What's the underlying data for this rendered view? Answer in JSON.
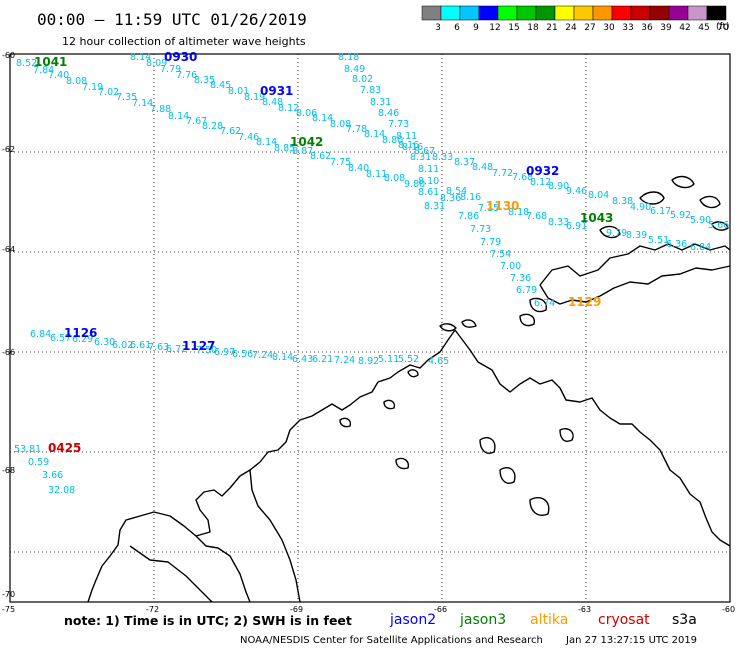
{
  "title": "00:00 – 11:59 UTC 01/26/2019",
  "subtitle": "12 hour collection of altimeter wave heights",
  "legend": {
    "unit": "(ft)",
    "labels": [
      "3",
      "6",
      "9",
      "12",
      "15",
      "18",
      "21",
      "24",
      "27",
      "30",
      "33",
      "36",
      "39",
      "42",
      "45",
      "70"
    ],
    "colors": [
      "#808080",
      "#00ffff",
      "#00c8ff",
      "#0000ff",
      "#00ff00",
      "#00c800",
      "#009600",
      "#ffff00",
      "#ffc800",
      "#ff9600",
      "#ff0000",
      "#c80000",
      "#960000",
      "#960096",
      "#c896c8",
      "#000000"
    ]
  },
  "axes": {
    "lat_labels": [
      "-60",
      "-62",
      "-64",
      "-66",
      "-68",
      "-70"
    ],
    "lon_labels": [
      "-75",
      "-72",
      "-69",
      "-66",
      "-63",
      "-60"
    ]
  },
  "colors": {
    "jason2": "#0000ff",
    "jason3": "#008000",
    "altika": "#ff9900",
    "cryosat": "#cc0000",
    "s3a": "#000000",
    "obs_default": "#00bfe8",
    "coast": "#000000",
    "grid": "#000000"
  },
  "pass_times": [
    {
      "text": "1041",
      "sat": "jason3"
    },
    {
      "text": "0930",
      "sat": "jason2"
    },
    {
      "text": "0931",
      "sat": "jason2"
    },
    {
      "text": "1042",
      "sat": "jason3"
    },
    {
      "text": "0932",
      "sat": "jason2"
    },
    {
      "text": "1043",
      "sat": "jason3"
    },
    {
      "text": "1126",
      "sat": "jason2"
    },
    {
      "text": "1127",
      "sat": "jason2"
    },
    {
      "text": "0425",
      "sat": "cryosat"
    },
    {
      "text": "1130",
      "sat": "altika"
    },
    {
      "text": "1129",
      "sat": "altika"
    }
  ],
  "observations": [
    {
      "v": "8.52"
    },
    {
      "v": "7.84"
    },
    {
      "v": "7.40"
    },
    {
      "v": "8.08"
    },
    {
      "v": "7.19"
    },
    {
      "v": "7.02"
    },
    {
      "v": "7.35"
    },
    {
      "v": "7.14"
    },
    {
      "v": "7.88"
    },
    {
      "v": "8.14"
    },
    {
      "v": "7.67"
    },
    {
      "v": "8.28"
    },
    {
      "v": "7.62"
    },
    {
      "v": "7.46"
    },
    {
      "v": "8.14"
    },
    {
      "v": "8.85"
    },
    {
      "v": "8.87"
    },
    {
      "v": "8.62"
    },
    {
      "v": "7.75"
    },
    {
      "v": "8.40"
    },
    {
      "v": "8.11"
    },
    {
      "v": "8.08"
    },
    {
      "v": "8.14"
    },
    {
      "v": "8.09"
    },
    {
      "v": "7.79"
    },
    {
      "v": "7.76"
    },
    {
      "v": "8.35"
    },
    {
      "v": "8.45"
    },
    {
      "v": "8.01"
    },
    {
      "v": "8.19"
    },
    {
      "v": "8.48"
    },
    {
      "v": "8.12"
    },
    {
      "v": "8.06"
    },
    {
      "v": "8.14"
    },
    {
      "v": "8.08"
    },
    {
      "v": "7.78"
    },
    {
      "v": "8.14"
    },
    {
      "v": "8.80"
    },
    {
      "v": "8.16"
    },
    {
      "v": "8.67"
    },
    {
      "v": "8.33"
    },
    {
      "v": "8.37"
    },
    {
      "v": "8.48"
    },
    {
      "v": "7.72"
    },
    {
      "v": "7.68"
    },
    {
      "v": "8.12"
    },
    {
      "v": "8.90"
    },
    {
      "v": "8.18"
    },
    {
      "v": "8.49"
    },
    {
      "v": "8.02"
    },
    {
      "v": "7.83"
    },
    {
      "v": "8.31"
    },
    {
      "v": "8.46"
    },
    {
      "v": "7.73"
    },
    {
      "v": "8.11"
    },
    {
      "v": "8.16"
    },
    {
      "v": "8.31"
    },
    {
      "v": "8.11"
    },
    {
      "v": "8.10"
    },
    {
      "v": "9.80"
    },
    {
      "v": "8.61"
    },
    {
      "v": "8.36"
    },
    {
      "v": "8.31"
    },
    {
      "v": "7.86"
    },
    {
      "v": "7.73"
    },
    {
      "v": "7.79"
    },
    {
      "v": "7.54"
    },
    {
      "v": "7.00"
    },
    {
      "v": "7.36"
    },
    {
      "v": "6.79"
    },
    {
      "v": "6.74"
    },
    {
      "v": "8.54"
    },
    {
      "v": "8.16"
    },
    {
      "v": "7.15"
    },
    {
      "v": "8.18"
    },
    {
      "v": "7.68"
    },
    {
      "v": "8.33"
    },
    {
      "v": "6.91"
    },
    {
      "v": "9.79"
    },
    {
      "v": "8.39"
    },
    {
      "v": "5.51"
    },
    {
      "v": "6.36"
    },
    {
      "v": "6.84"
    },
    {
      "v": "9.46"
    },
    {
      "v": "8.04"
    },
    {
      "v": "8.38"
    },
    {
      "v": "4.90"
    },
    {
      "v": "6.17"
    },
    {
      "v": "5.92"
    },
    {
      "v": "5.90"
    },
    {
      "v": "5.66"
    },
    {
      "v": "6.84"
    },
    {
      "v": "6.57"
    },
    {
      "v": "6.29"
    },
    {
      "v": "6.30"
    },
    {
      "v": "6.02"
    },
    {
      "v": "6.61"
    },
    {
      "v": "7.63"
    },
    {
      "v": "6.72"
    },
    {
      "v": "7.50"
    },
    {
      "v": "6.97"
    },
    {
      "v": "6.56"
    },
    {
      "v": "7.24"
    },
    {
      "v": "8.14"
    },
    {
      "v": "6.43"
    },
    {
      "v": "6.21"
    },
    {
      "v": "7.24"
    },
    {
      "v": "8.92"
    },
    {
      "v": "5.11"
    },
    {
      "v": "5.52"
    },
    {
      "v": "4.65"
    },
    {
      "v": "53.81"
    },
    {
      "v": "0.59"
    },
    {
      "v": "3.66"
    },
    {
      "v": "32.08"
    }
  ],
  "note": "note: 1) Time is in UTC; 2) SWH is in feet",
  "satellites": [
    {
      "name": "jason2",
      "color": "#0000ff"
    },
    {
      "name": "jason3",
      "color": "#008000"
    },
    {
      "name": "altika",
      "color": "#ff9900"
    },
    {
      "name": "cryosat",
      "color": "#cc0000"
    },
    {
      "name": "s3a",
      "color": "#000000"
    }
  ],
  "credit_left": "NOAA/NESDIS Center for Satellite Applications and Research",
  "credit_right": "Jan 27 13:27:15 UTC 2019"
}
